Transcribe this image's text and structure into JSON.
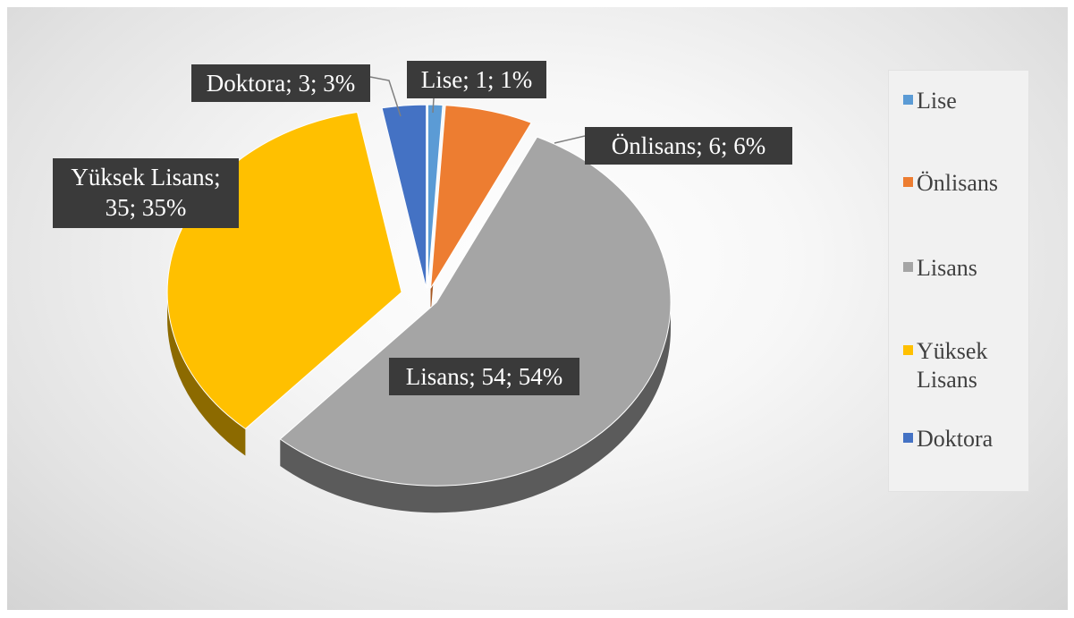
{
  "chart_data": {
    "type": "pie",
    "title": "",
    "slices": [
      {
        "label": "Lise",
        "value": 1,
        "percent": "1%",
        "data_label": "Lise; 1; 1%",
        "color": "#5b9bd5"
      },
      {
        "label": "Önlisans",
        "value": 6,
        "percent": "6%",
        "data_label": "Önlisans; 6; 6%",
        "color": "#ed7d31"
      },
      {
        "label": "Lisans",
        "value": 54,
        "percent": "54%",
        "data_label": "Lisans; 54; 54%",
        "color": "#a5a5a5"
      },
      {
        "label": "Yüksek Lisans",
        "value": 35,
        "percent": "35%",
        "data_label_lines": [
          "Yüksek Lisans;",
          "35; 35%"
        ],
        "color": "#ffc000"
      },
      {
        "label": "Doktora",
        "value": 3,
        "percent": "3%",
        "data_label": "Doktora; 3; 3%",
        "color": "#4472c4"
      }
    ],
    "legend": {
      "position": "right",
      "items": [
        {
          "label": "Lise",
          "color": "#5b9bd5"
        },
        {
          "label": "Önlisans",
          "color": "#ed7d31"
        },
        {
          "label": "Lisans",
          "color": "#a5a5a5"
        },
        {
          "label": "Yüksek Lisans",
          "color": "#ffc000"
        },
        {
          "label": "Doktora",
          "color": "#4472c4"
        }
      ]
    },
    "style": "3d-pie-exploded"
  }
}
